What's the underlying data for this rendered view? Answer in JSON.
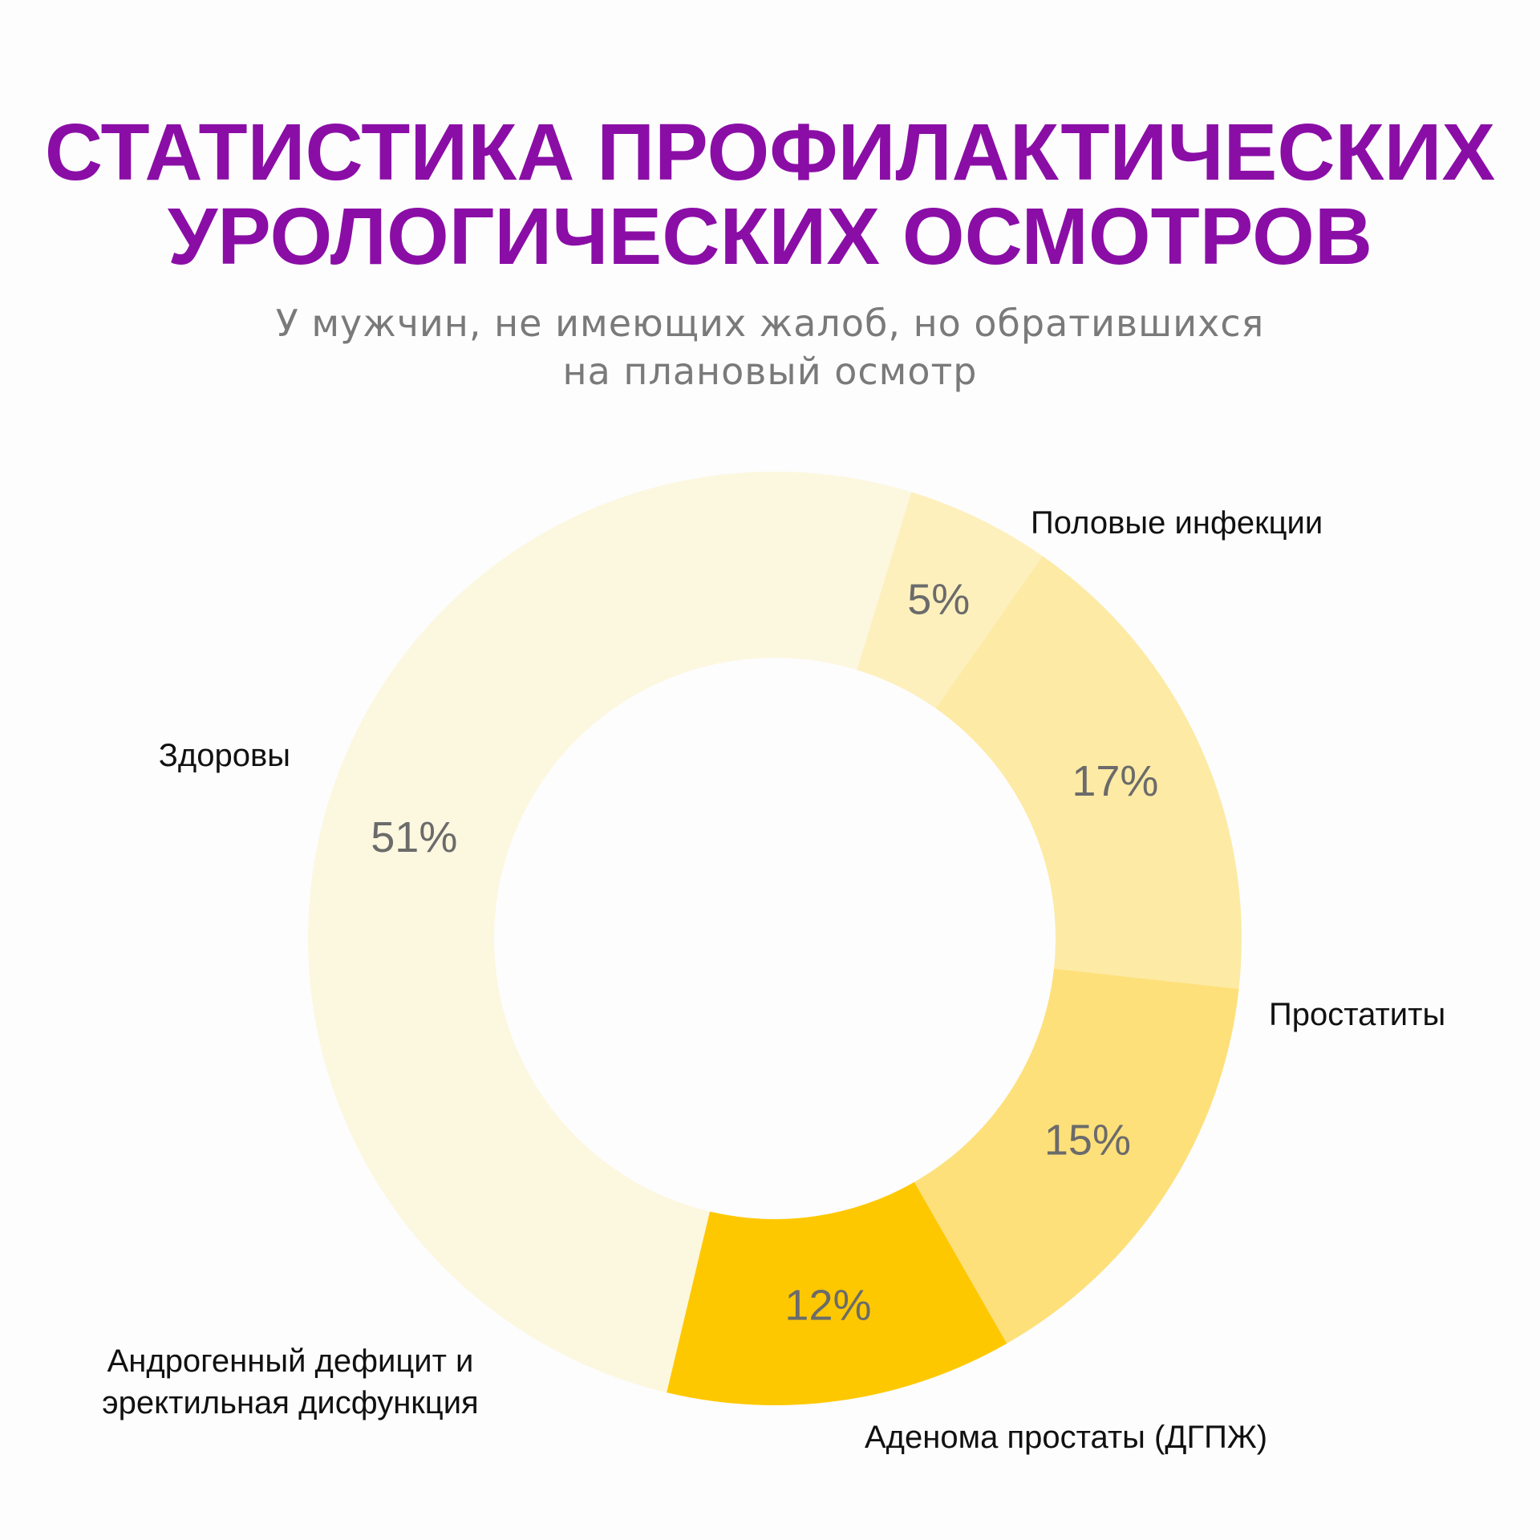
{
  "chart_data": {
    "type": "pie",
    "title": [
      "СТАТИСТИКА ПРОФИЛАКТИЧЕСКИХ",
      "УРОЛОГИЧЕСКИХ ОСМОТРОВ"
    ],
    "subtitle": [
      "У мужчин, не имеющих жалоб, но обратившихся",
      "на плановый осмотр"
    ],
    "donut": true,
    "slices": [
      {
        "label": "Половые инфекции",
        "value": 5,
        "value_label": "5%",
        "color": "#fdf0bd"
      },
      {
        "label": "Простатиты",
        "value": 17,
        "value_label": "17%",
        "color": "#fdeaa4"
      },
      {
        "label": "Аденома простаты (ДГПЖ)",
        "value": 15,
        "value_label": "15%",
        "color": "#fee07a"
      },
      {
        "label": [
          "Андрогенный дефицит и",
          "эректильная дисфункция"
        ],
        "value": 12,
        "value_label": "12%",
        "color": "#fec800"
      },
      {
        "label": "Здоровы",
        "value": 51,
        "value_label": "51%",
        "color": "#fcf7df"
      }
    ]
  }
}
